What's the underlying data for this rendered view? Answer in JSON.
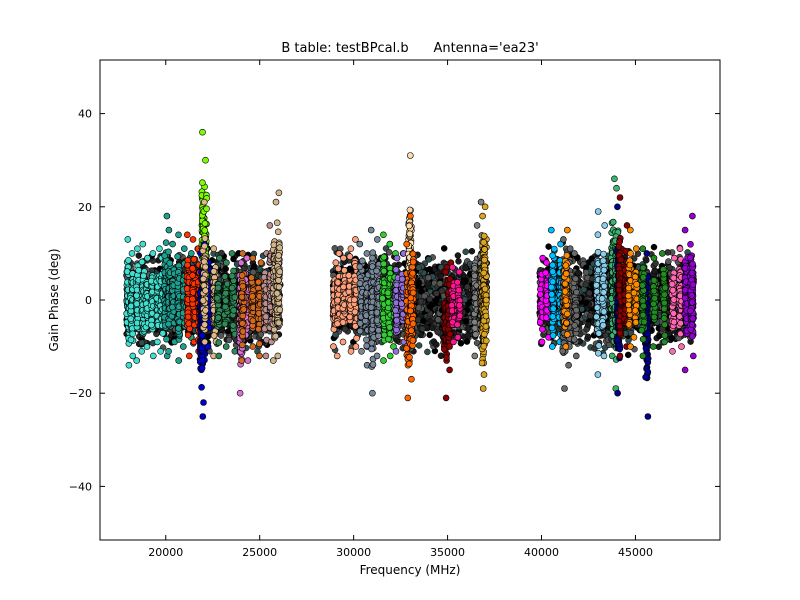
{
  "chart_data": {
    "type": "scatter",
    "title": "B table: testBPcal.b      Antenna='ea23'",
    "xlabel": "Frequency (MHz)",
    "ylabel": "Gain Phase (deg)",
    "xlim": [
      16500,
      49500
    ],
    "ylim": [
      -51.5,
      51.5
    ],
    "xticks": [
      20000,
      25000,
      30000,
      35000,
      40000,
      45000
    ],
    "xtick_labels": [
      "20000",
      "25000",
      "30000",
      "35000",
      "40000",
      "45000"
    ],
    "yticks": [
      -40,
      -20,
      0,
      20,
      40
    ],
    "ytick_labels": [
      "−40",
      "−20",
      "0",
      "20",
      "40"
    ],
    "grid": false,
    "legend": "none",
    "marker": "circle",
    "series": [
      {
        "band": "A",
        "color": "#40e0d0",
        "x": [
          18000,
          18200,
          18500,
          18800,
          19000,
          19300,
          19600,
          19800
        ],
        "min": [
          -14,
          -12,
          -13,
          -11,
          -10,
          -12,
          -9,
          -11
        ],
        "max": [
          13,
          10,
          11,
          12,
          9,
          10,
          11,
          9
        ],
        "mean": [
          0,
          0,
          1,
          -1,
          0,
          0,
          1,
          0
        ]
      },
      {
        "band": "A",
        "color": "#1f9f8f",
        "x": [
          20000,
          20200,
          20400,
          20700,
          21000,
          21300
        ],
        "min": [
          -12,
          -11,
          -9,
          -13,
          -10,
          -8
        ],
        "max": [
          18,
          15,
          12,
          14,
          11,
          10
        ],
        "mean": [
          0,
          0,
          -1,
          0,
          1,
          0
        ]
      },
      {
        "band": "A",
        "color": "#ff3300",
        "x": [
          21200,
          21500,
          21800
        ],
        "min": [
          -12,
          -9,
          -11
        ],
        "max": [
          14,
          13,
          11
        ],
        "mean": [
          0,
          1,
          0
        ]
      },
      {
        "band": "A",
        "color": "#7cfc00",
        "x": [
          22000,
          22100
        ],
        "min": [
          -11,
          -9
        ],
        "max": [
          36,
          30
        ],
        "mean": [
          2,
          3
        ]
      },
      {
        "band": "A",
        "color": "#0000cd",
        "x": [
          21900,
          22000,
          22300
        ],
        "min": [
          -25,
          -22,
          -10
        ],
        "max": [
          10,
          12,
          8
        ],
        "mean": [
          -2,
          0,
          0
        ]
      },
      {
        "band": "A",
        "color": "#deb887",
        "x": [
          22050,
          22600
        ],
        "min": [
          -9,
          -12
        ],
        "max": [
          21,
          11
        ],
        "mean": [
          0,
          0
        ]
      },
      {
        "band": "A",
        "color": "#2e8b57",
        "x": [
          22800,
          23200,
          23600
        ],
        "min": [
          -12,
          -10,
          -11
        ],
        "max": [
          9,
          8,
          10
        ],
        "mean": [
          0,
          0,
          0
        ]
      },
      {
        "band": "A",
        "color": "#da70d6",
        "x": [
          24000,
          24300
        ],
        "min": [
          -20,
          -13
        ],
        "max": [
          8,
          9
        ],
        "mean": [
          -1,
          0
        ]
      },
      {
        "band": "A",
        "color": "#d2691e",
        "x": [
          24100,
          24600,
          25000
        ],
        "min": [
          -13,
          -10,
          -12
        ],
        "max": [
          10,
          9,
          8
        ],
        "mean": [
          0,
          0,
          0
        ]
      },
      {
        "band": "A",
        "color": "#bc8f8f",
        "x": [
          25300,
          25600
        ],
        "min": [
          -12,
          -9
        ],
        "max": [
          10,
          16
        ],
        "mean": [
          0,
          0
        ]
      },
      {
        "band": "A",
        "color": "#d2b48c",
        "x": [
          25800,
          26000
        ],
        "min": [
          -13,
          -12
        ],
        "max": [
          21,
          23
        ],
        "mean": [
          0,
          0
        ]
      },
      {
        "band": "B",
        "color": "#ffa07a",
        "x": [
          29000,
          29200,
          29500,
          29800,
          30100
        ],
        "min": [
          -10,
          -12,
          -9,
          -11,
          -10
        ],
        "max": [
          8,
          10,
          9,
          11,
          13
        ],
        "mean": [
          0,
          0,
          1,
          0,
          0
        ]
      },
      {
        "band": "B",
        "color": "#778899",
        "x": [
          30400,
          30700,
          31000,
          31300
        ],
        "min": [
          -11,
          -14,
          -20,
          -12
        ],
        "max": [
          12,
          10,
          15,
          13
        ],
        "mean": [
          0,
          0,
          0,
          1
        ]
      },
      {
        "band": "B",
        "color": "#32cd32",
        "x": [
          31600,
          31900,
          32200
        ],
        "min": [
          -13,
          -12,
          -10
        ],
        "max": [
          14,
          12,
          10
        ],
        "mean": [
          0,
          0,
          0
        ]
      },
      {
        "band": "B",
        "color": "#9370db",
        "x": [
          32300,
          32600
        ],
        "min": [
          -11,
          -9
        ],
        "max": [
          9,
          10
        ],
        "mean": [
          0,
          0
        ]
      },
      {
        "band": "B",
        "color": "#ffdead",
        "x": [
          33000
        ],
        "min": [
          -8
        ],
        "max": [
          31
        ],
        "mean": [
          2
        ]
      },
      {
        "band": "B",
        "color": "#ff6600",
        "x": [
          32900,
          33100
        ],
        "min": [
          -21,
          -17
        ],
        "max": [
          12,
          18
        ],
        "mean": [
          -1,
          0
        ]
      },
      {
        "band": "B",
        "color": "#8b0000",
        "x": [
          34900,
          35100
        ],
        "min": [
          -21,
          -15
        ],
        "max": [
          7,
          8
        ],
        "mean": [
          0,
          0
        ]
      },
      {
        "band": "B",
        "color": "#ff1493",
        "x": [
          35300,
          35600
        ],
        "min": [
          -9,
          -8
        ],
        "max": [
          7,
          6
        ],
        "mean": [
          0,
          0
        ]
      },
      {
        "band": "B",
        "color": "#808080",
        "x": [
          36500,
          36800
        ],
        "min": [
          -12,
          -10
        ],
        "max": [
          16,
          21
        ],
        "mean": [
          0,
          0
        ]
      },
      {
        "band": "B",
        "color": "#daa520",
        "x": [
          36900,
          37000
        ],
        "min": [
          -19,
          -16
        ],
        "max": [
          18,
          20
        ],
        "mean": [
          0,
          0
        ]
      },
      {
        "band": "C",
        "color": "#ff00ff",
        "x": [
          40000,
          40300
        ],
        "min": [
          -9,
          -8
        ],
        "max": [
          9,
          8
        ],
        "mean": [
          0,
          0
        ]
      },
      {
        "band": "C",
        "color": "#00bfff",
        "x": [
          40600,
          41000
        ],
        "min": [
          -10,
          -9
        ],
        "max": [
          15,
          12
        ],
        "mean": [
          0,
          0
        ]
      },
      {
        "band": "C",
        "color": "#696969",
        "x": [
          41200,
          41500,
          41800
        ],
        "min": [
          -19,
          -14,
          -12
        ],
        "max": [
          13,
          11,
          10
        ],
        "mean": [
          0,
          0,
          0
        ]
      },
      {
        "band": "C",
        "color": "#ff8c00",
        "x": [
          41300
        ],
        "min": [
          -10
        ],
        "max": [
          15
        ],
        "mean": [
          0
        ]
      },
      {
        "band": "C",
        "color": "#87ceeb",
        "x": [
          43000,
          43300
        ],
        "min": [
          -16,
          -12
        ],
        "max": [
          19,
          16
        ],
        "mean": [
          0,
          0
        ]
      },
      {
        "band": "C",
        "color": "#3cb371",
        "x": [
          43800,
          44000
        ],
        "min": [
          -12,
          -19
        ],
        "max": [
          26,
          24
        ],
        "mean": [
          0,
          0
        ]
      },
      {
        "band": "C",
        "color": "#00008b",
        "x": [
          44100,
          45600
        ],
        "min": [
          -20,
          -25
        ],
        "max": [
          20,
          10
        ],
        "mean": [
          0,
          0
        ]
      },
      {
        "band": "C",
        "color": "#8b0000",
        "x": [
          44200,
          44500
        ],
        "min": [
          -12,
          -10
        ],
        "max": [
          22,
          16
        ],
        "mean": [
          0,
          0
        ]
      },
      {
        "band": "C",
        "color": "#ff8c00",
        "x": [
          44700,
          45000
        ],
        "min": [
          -10,
          -8
        ],
        "max": [
          15,
          11
        ],
        "mean": [
          0,
          0
        ]
      },
      {
        "band": "C",
        "color": "#228b22",
        "x": [
          45400,
          46000,
          46500
        ],
        "min": [
          -12,
          -10,
          -9
        ],
        "max": [
          11,
          9,
          10
        ],
        "mean": [
          0,
          0,
          0
        ]
      },
      {
        "band": "C",
        "color": "#ff69b4",
        "x": [
          47000,
          47400
        ],
        "min": [
          -11,
          -10
        ],
        "max": [
          9,
          11
        ],
        "mean": [
          0,
          0
        ]
      },
      {
        "band": "C",
        "color": "#9400d3",
        "x": [
          47700,
          48000
        ],
        "min": [
          -15,
          -12
        ],
        "max": [
          15,
          18
        ],
        "mean": [
          0,
          0
        ]
      }
    ]
  }
}
